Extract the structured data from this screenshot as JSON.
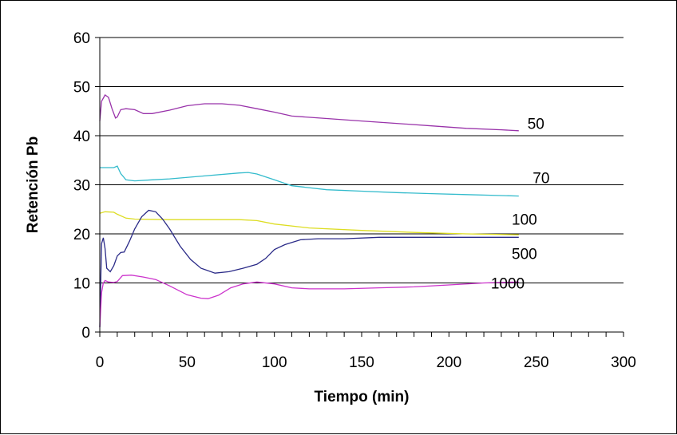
{
  "chart_data": {
    "type": "line",
    "title": "",
    "xlabel": "Tiempo (min)",
    "ylabel": "Retención Pb",
    "xlim": [
      0,
      300
    ],
    "ylim": [
      0,
      60
    ],
    "xticks": [
      0,
      50,
      100,
      150,
      200,
      250,
      300
    ],
    "yticks": [
      0,
      10,
      20,
      30,
      40,
      50,
      60
    ],
    "grid": "horizontal",
    "legend": "none",
    "series": [
      {
        "name": "50",
        "color": "#9933aa",
        "points": [
          [
            0,
            43
          ],
          [
            1,
            47
          ],
          [
            3,
            48.3
          ],
          [
            5,
            47.8
          ],
          [
            7,
            45.5
          ],
          [
            9,
            43.6
          ],
          [
            10,
            43.8
          ],
          [
            12,
            45.3
          ],
          [
            15,
            45.5
          ],
          [
            20,
            45.3
          ],
          [
            25,
            44.5
          ],
          [
            30,
            44.5
          ],
          [
            40,
            45.2
          ],
          [
            50,
            46.1
          ],
          [
            60,
            46.5
          ],
          [
            70,
            46.5
          ],
          [
            80,
            46.2
          ],
          [
            90,
            45.5
          ],
          [
            100,
            44.8
          ],
          [
            110,
            44
          ],
          [
            130,
            43.5
          ],
          [
            150,
            43
          ],
          [
            170,
            42.5
          ],
          [
            190,
            42
          ],
          [
            210,
            41.5
          ],
          [
            230,
            41.2
          ],
          [
            240,
            41
          ]
        ]
      },
      {
        "name": "70",
        "color": "#33bbcc",
        "points": [
          [
            0,
            33.5
          ],
          [
            5,
            33.5
          ],
          [
            8,
            33.5
          ],
          [
            10,
            33.8
          ],
          [
            12,
            32.3
          ],
          [
            15,
            31
          ],
          [
            20,
            30.8
          ],
          [
            30,
            31
          ],
          [
            40,
            31.2
          ],
          [
            60,
            31.8
          ],
          [
            80,
            32.4
          ],
          [
            85,
            32.5
          ],
          [
            90,
            32.2
          ],
          [
            100,
            31
          ],
          [
            110,
            29.8
          ],
          [
            130,
            29
          ],
          [
            150,
            28.7
          ],
          [
            170,
            28.4
          ],
          [
            190,
            28.2
          ],
          [
            210,
            28
          ],
          [
            230,
            27.8
          ],
          [
            240,
            27.7
          ]
        ]
      },
      {
        "name": "100",
        "color": "#dddd22",
        "points": [
          [
            0,
            24.2
          ],
          [
            3,
            24.5
          ],
          [
            8,
            24.4
          ],
          [
            10,
            24
          ],
          [
            15,
            23.2
          ],
          [
            20,
            23
          ],
          [
            40,
            22.9
          ],
          [
            60,
            22.9
          ],
          [
            80,
            22.9
          ],
          [
            90,
            22.7
          ],
          [
            100,
            22
          ],
          [
            120,
            21.2
          ],
          [
            150,
            20.7
          ],
          [
            180,
            20.3
          ],
          [
            210,
            20
          ],
          [
            240,
            19.8
          ]
        ]
      },
      {
        "name": "500",
        "color": "#2b2b88",
        "points": [
          [
            0,
            1
          ],
          [
            1,
            18
          ],
          [
            2,
            19.2
          ],
          [
            3,
            17
          ],
          [
            4,
            13
          ],
          [
            6,
            12.3
          ],
          [
            8,
            13.5
          ],
          [
            10,
            15.5
          ],
          [
            12,
            16.2
          ],
          [
            14,
            16.3
          ],
          [
            17,
            18.5
          ],
          [
            20,
            21
          ],
          [
            24,
            23.5
          ],
          [
            28,
            24.8
          ],
          [
            32,
            24.5
          ],
          [
            36,
            23
          ],
          [
            40,
            21
          ],
          [
            46,
            17.5
          ],
          [
            52,
            14.8
          ],
          [
            58,
            13
          ],
          [
            66,
            12
          ],
          [
            74,
            12.3
          ],
          [
            82,
            13
          ],
          [
            90,
            13.8
          ],
          [
            95,
            15
          ],
          [
            100,
            16.8
          ],
          [
            106,
            17.8
          ],
          [
            115,
            18.8
          ],
          [
            125,
            19
          ],
          [
            140,
            19
          ],
          [
            160,
            19.3
          ],
          [
            190,
            19.3
          ],
          [
            220,
            19.3
          ],
          [
            240,
            19.3
          ]
        ]
      },
      {
        "name": "1000",
        "color": "#cc33cc",
        "points": [
          [
            0,
            1
          ],
          [
            1,
            8
          ],
          [
            2,
            10
          ],
          [
            3,
            10.5
          ],
          [
            5,
            10.2
          ],
          [
            8,
            10.1
          ],
          [
            10,
            10.3
          ],
          [
            13,
            11.5
          ],
          [
            18,
            11.6
          ],
          [
            25,
            11.2
          ],
          [
            32,
            10.7
          ],
          [
            40,
            9.4
          ],
          [
            50,
            7.6
          ],
          [
            58,
            6.9
          ],
          [
            62,
            6.8
          ],
          [
            68,
            7.5
          ],
          [
            75,
            9
          ],
          [
            82,
            9.8
          ],
          [
            90,
            10.2
          ],
          [
            100,
            9.8
          ],
          [
            110,
            9
          ],
          [
            120,
            8.8
          ],
          [
            140,
            8.8
          ],
          [
            160,
            9
          ],
          [
            180,
            9.2
          ],
          [
            200,
            9.6
          ],
          [
            220,
            10
          ],
          [
            240,
            10.2
          ]
        ]
      }
    ],
    "series_labels": [
      {
        "series": "50",
        "text": "50",
        "at": [
          245,
          42.5
        ]
      },
      {
        "series": "70",
        "text": "70",
        "at": [
          248,
          31.5
        ]
      },
      {
        "series": "100",
        "text": "100",
        "at": [
          236,
          23
        ]
      },
      {
        "series": "500",
        "text": "500",
        "at": [
          236,
          16
        ]
      },
      {
        "series": "1000",
        "text": "1000",
        "at": [
          224,
          10
        ]
      }
    ]
  }
}
